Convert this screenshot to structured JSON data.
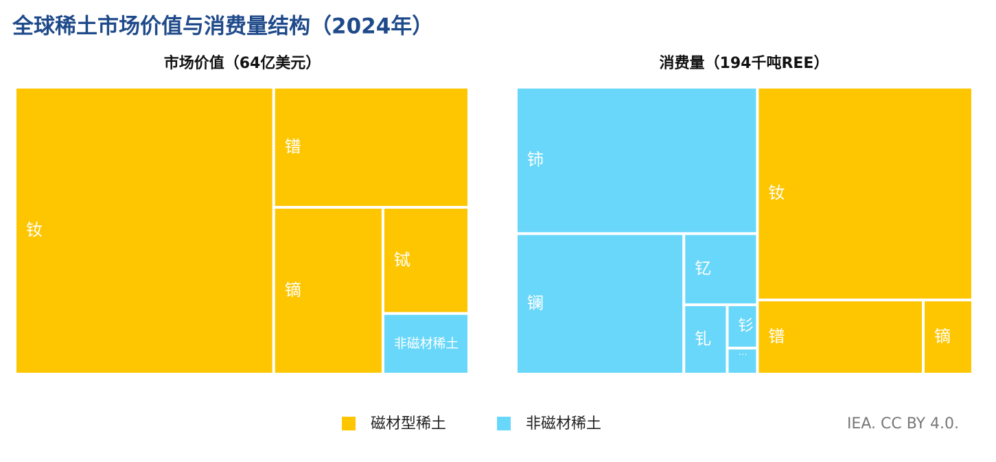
{
  "title": "全球稀土市场价值与消费量结构（2024年）",
  "source": "IEA. CC BY 4.0.",
  "legend": [
    {
      "name": "磁材型稀土",
      "color": "#FEC600"
    },
    {
      "name": "非磁材稀土",
      "color": "#68D7FA"
    }
  ],
  "chart_data": [
    {
      "type": "treemap",
      "title": "市场价值（64亿美元）",
      "items": [
        {
          "label": "钕",
          "value": 57,
          "color": "#FEC600"
        },
        {
          "label": "镨",
          "value": 18,
          "color": "#FEC600"
        },
        {
          "label": "镝",
          "value": 14,
          "color": "#FEC600"
        },
        {
          "label": "铽",
          "value": 7,
          "color": "#FEC600"
        },
        {
          "label": "非磁材稀土",
          "value": 4,
          "color": "#68D7FA"
        }
      ]
    },
    {
      "type": "treemap",
      "title": "消费量（194千吨REE）",
      "items": [
        {
          "color": "#68D7FA",
          "children": [
            {
              "label": "铈",
              "value": 27
            },
            {
              "label": "镧",
              "value": 18
            },
            {
              "label": "钇",
              "value": 4
            },
            {
              "label": "钆",
              "value": 2.3
            },
            {
              "label": "钐",
              "value": 1
            },
            {
              "label": "…",
              "value": 0.6
            }
          ]
        },
        {
          "color": "#FEC600",
          "children": [
            {
              "label": "钕",
              "value": 35
            },
            {
              "label": "镨",
              "value": 9.4
            },
            {
              "label": "镝",
              "value": 2.8
            }
          ]
        }
      ]
    }
  ]
}
